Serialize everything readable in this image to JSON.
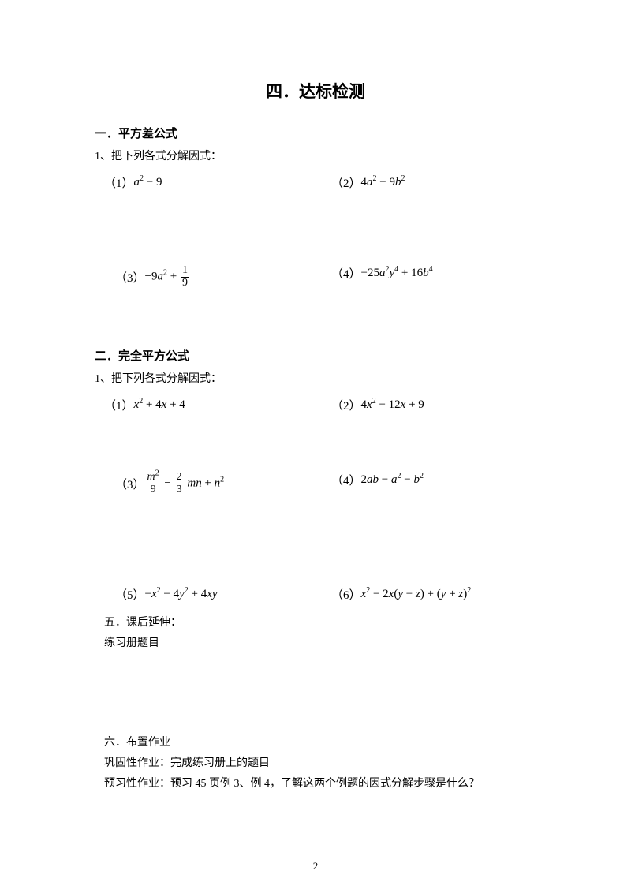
{
  "title": "四．达标检测",
  "section1": {
    "heading": "一．平方差公式",
    "instruction": "1、把下列各式分解因式：",
    "p1": {
      "num": "（1）",
      "html": "<span class='it'>a</span><sup>2</sup> − 9"
    },
    "p2": {
      "num": "（2）",
      "html": "4<span class='it'>a</span><sup>2</sup> − 9<span class='it'>b</span><sup>2</sup>"
    },
    "p3": {
      "num": "（3）",
      "html": "−9<span class='it'>a</span><sup>2</sup> + <span class='frac'><span class='fn'>1</span><span class='fd'>9</span></span>"
    },
    "p4": {
      "num": "（4）",
      "html": "−25<span class='it'>a</span><sup>2</sup><span class='it'>y</span><sup>4</sup> + 16<span class='it'>b</span><sup>4</sup>"
    }
  },
  "section2": {
    "heading": "二．完全平方公式",
    "instruction": "1、把下列各式分解因式：",
    "p1": {
      "num": "（1）",
      "html": "<span class='it'>x</span><sup>2</sup> + 4<span class='it'>x</span> + 4"
    },
    "p2": {
      "num": "（2）",
      "html": "4<span class='it'>x</span><sup>2</sup> − 12<span class='it'>x</span> + 9"
    },
    "p3": {
      "num": "（3）",
      "html": "<span class='frac'><span class='fn'><span class='it'>m</span><sup>2</sup></span><span class='fd'>9</span></span> − <span class='frac'><span class='fn'>2</span><span class='fd'>3</span></span> <span class='it'>mn</span> + <span class='it'>n</span><sup>2</sup>"
    },
    "p4": {
      "num": "（4）",
      "html": "2<span class='it'>ab</span> − <span class='it'>a</span><sup>2</sup> − <span class='it'>b</span><sup>2</sup>"
    },
    "p5": {
      "num": "（5）",
      "html": "−<span class='it'>x</span><sup>2</sup> − 4<span class='it'>y</span><sup>2</sup> + 4<span class='it'>xy</span>"
    },
    "p6": {
      "num": "（6）",
      "html": "<span class='it'>x</span><sup>2</sup> − 2<span class='it'>x</span>(<span class='it'>y</span> − <span class='it'>z</span>) + (<span class='it'>y</span> + <span class='it'>z</span>)<sup>2</sup>"
    }
  },
  "section5": {
    "heading": "五．课后延伸：",
    "line1": "练习册题目"
  },
  "section6": {
    "heading": "六．布置作业",
    "line1": "巩固性作业：完成练习册上的题目",
    "line2": "预习性作业：预习 45 页例 3、例 4，了解这两个例题的因式分解步骤是什么？"
  },
  "pageNumber": "2",
  "colors": {
    "text": "#000000",
    "bg": "#ffffff"
  }
}
